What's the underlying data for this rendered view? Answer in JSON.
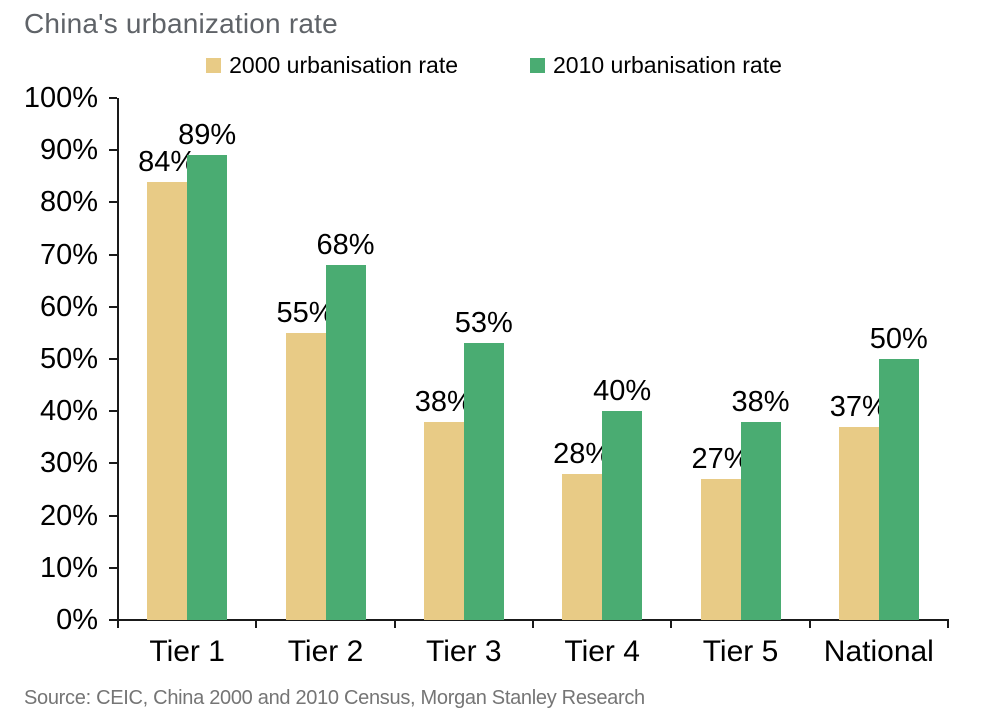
{
  "page": {
    "title": "China's urbanization rate",
    "source_note": "Source: CEIC, China 2000 and 2010 Census, Morgan Stanley Research"
  },
  "legend": {
    "position": "top",
    "items": [
      {
        "label": "2000 urbanisation rate",
        "color": "#E8CB86"
      },
      {
        "label": "2010 urbanisation rate",
        "color": "#4AAC72"
      }
    ]
  },
  "chart_data": {
    "type": "bar",
    "title": "China's urbanization rate",
    "categories": [
      "Tier 1",
      "Tier 2",
      "Tier 3",
      "Tier 4",
      "Tier 5",
      "National"
    ],
    "series": [
      {
        "name": "2000 urbanisation rate",
        "color": "#E8CB86",
        "values": [
          84,
          55,
          38,
          28,
          27,
          37
        ],
        "data_labels": [
          "84%",
          "55%",
          "38%",
          "28%",
          "27%",
          "37%"
        ]
      },
      {
        "name": "2010 urbanisation rate",
        "color": "#4AAC72",
        "values": [
          89,
          68,
          53,
          40,
          38,
          50
        ],
        "data_labels": [
          "89%",
          "68%",
          "53%",
          "40%",
          "38%",
          "50%"
        ]
      }
    ],
    "y_axis": {
      "min": 0,
      "max": 100,
      "step": 10,
      "tick_labels": [
        "0%",
        "10%",
        "20%",
        "30%",
        "40%",
        "50%",
        "60%",
        "70%",
        "80%",
        "90%",
        "100%"
      ]
    },
    "xlabel": "",
    "ylabel": "",
    "ylim": [
      0,
      100
    ],
    "gridlines": false,
    "legend_position": "top",
    "source": "Source: CEIC, China 2000 and 2010 Census, Morgan Stanley Research"
  }
}
